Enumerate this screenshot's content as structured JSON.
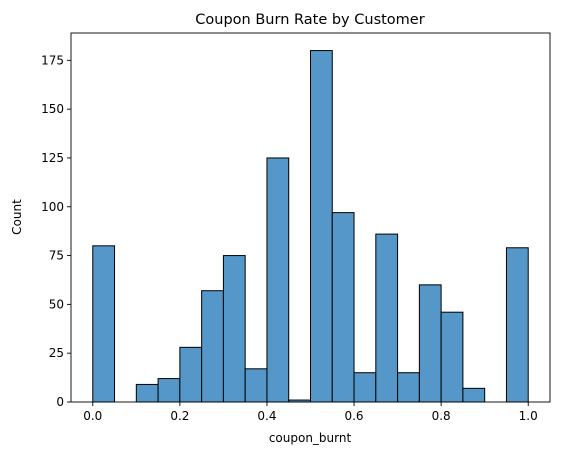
{
  "chart_data": {
    "type": "bar",
    "title": "Coupon Burn Rate by Customer",
    "xlabel": "coupon_burnt",
    "ylabel": "Count",
    "xlim": [
      -0.05,
      1.05
    ],
    "ylim": [
      0,
      189
    ],
    "xticks": [
      0.0,
      0.2,
      0.4,
      0.6,
      0.8,
      1.0
    ],
    "xtick_labels": [
      "0.0",
      "0.2",
      "0.4",
      "0.6",
      "0.8",
      "1.0"
    ],
    "yticks": [
      0,
      25,
      50,
      75,
      100,
      125,
      150,
      175
    ],
    "ytick_labels": [
      "0",
      "25",
      "50",
      "75",
      "100",
      "125",
      "150",
      "175"
    ],
    "bin_width": 0.05,
    "bin_edges": [
      0.0,
      0.05,
      0.1,
      0.15,
      0.2,
      0.25,
      0.3,
      0.35,
      0.4,
      0.45,
      0.5,
      0.55,
      0.6,
      0.65,
      0.7,
      0.75,
      0.8,
      0.85,
      0.9,
      0.95,
      1.0
    ],
    "values": [
      80,
      0,
      9,
      12,
      28,
      57,
      75,
      17,
      125,
      1,
      180,
      97,
      15,
      86,
      15,
      60,
      46,
      7,
      0,
      79
    ],
    "bar_color": "#5497c8",
    "edge_color": "#000000",
    "grid": false,
    "legend": "none"
  }
}
